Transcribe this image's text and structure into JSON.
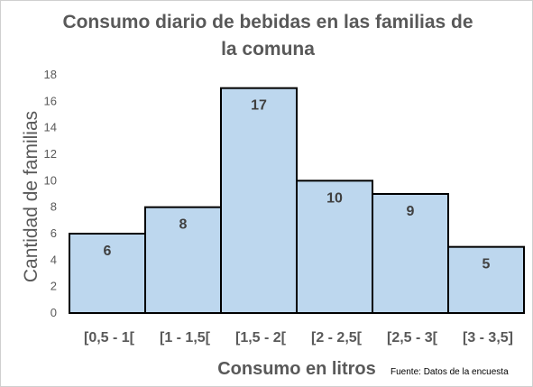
{
  "chart_data": {
    "type": "bar",
    "title_lines": [
      "Consumo diario de bebidas en las familias de",
      "la comuna"
    ],
    "xlabel": "Consumo en litros",
    "ylabel": "Cantidad de familias",
    "categories": [
      "[0,5 - 1[",
      "[1 - 1,5[",
      "[1,5 - 2[",
      "[2 - 2,5[",
      "[2,5 - 3[",
      "[3 - 3,5]"
    ],
    "values": [
      6,
      8,
      17,
      10,
      9,
      5
    ],
    "ylim": [
      0,
      18
    ],
    "yticks": [
      0,
      2,
      4,
      6,
      8,
      10,
      12,
      14,
      16,
      18
    ],
    "grid": false,
    "legend": "none",
    "bar_color": "#bdd7ee",
    "bar_edge_color": "#000000",
    "source": "Fuente: Datos de la encuesta"
  }
}
